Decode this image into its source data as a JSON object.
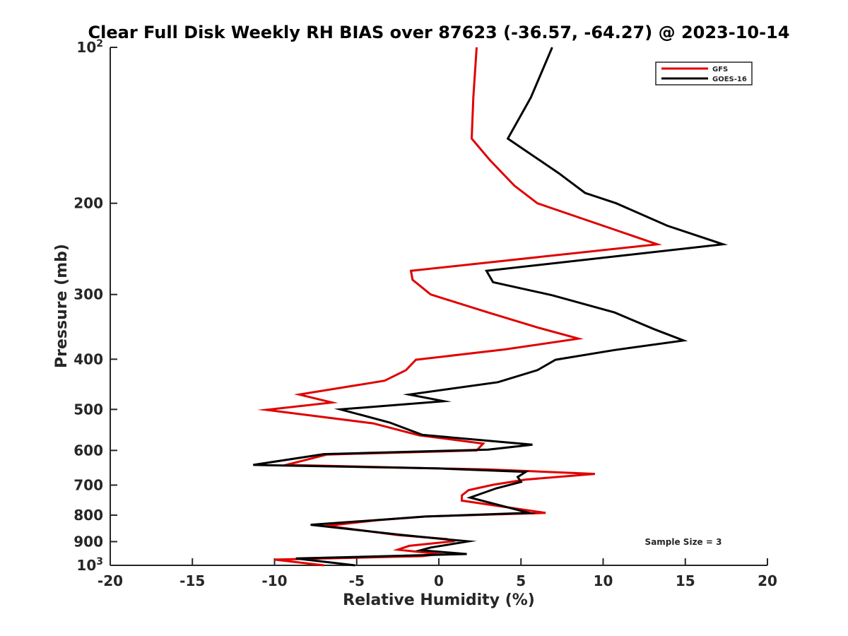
{
  "chart_data": {
    "type": "line",
    "title": "Clear Full Disk Weekly RH BIAS over 87623 (-36.57, -64.27) @ 2023-10-14",
    "xlabel": "Relative Humidity (%)",
    "ylabel": "Pressure (mb)",
    "xlim": [
      -20,
      20
    ],
    "ylim": [
      1000,
      100
    ],
    "y_scale": "log",
    "y_reversed": true,
    "grid": false,
    "legend_position": "top-right",
    "x_ticks": [
      "-20",
      "-15",
      "-10",
      "-5",
      "0",
      "5",
      "10",
      "15",
      "20"
    ],
    "x_tick_values": [
      -20,
      -15,
      -10,
      -5,
      0,
      5,
      10,
      15,
      20
    ],
    "y_ticks": [
      {
        "value": 100,
        "base": "10",
        "exp": "2"
      },
      {
        "value": 200,
        "label": "200"
      },
      {
        "value": 300,
        "label": "300"
      },
      {
        "value": 400,
        "label": "400"
      },
      {
        "value": 500,
        "label": "500"
      },
      {
        "value": 600,
        "label": "600"
      },
      {
        "value": 700,
        "label": "700"
      },
      {
        "value": 800,
        "label": "800"
      },
      {
        "value": 900,
        "label": "900"
      },
      {
        "value": 1000,
        "base": "10",
        "exp": "3"
      }
    ],
    "annotation": "Sample Size = 3",
    "series": [
      {
        "name": "GFS",
        "color": "#e00000",
        "points": [
          [
            2.3,
            100
          ],
          [
            2.1,
            125
          ],
          [
            2.0,
            150
          ],
          [
            3.1,
            165
          ],
          [
            4.6,
            185
          ],
          [
            6.0,
            200
          ],
          [
            13.3,
            240
          ],
          [
            -1.7,
            270
          ],
          [
            -1.6,
            281
          ],
          [
            -0.5,
            300
          ],
          [
            3.0,
            325
          ],
          [
            6.1,
            348
          ],
          [
            8.5,
            365
          ],
          [
            4.0,
            383
          ],
          [
            -1.4,
            401
          ],
          [
            -2.0,
            420
          ],
          [
            -3.3,
            440
          ],
          [
            -8.5,
            468
          ],
          [
            -6.5,
            485
          ],
          [
            -10.5,
            501
          ],
          [
            -4.0,
            532
          ],
          [
            -1.2,
            561
          ],
          [
            2.7,
            582
          ],
          [
            2.3,
            600
          ],
          [
            -6.8,
            611
          ],
          [
            -9.3,
            640
          ],
          [
            0.0,
            650
          ],
          [
            3.0,
            653
          ],
          [
            9.5,
            666
          ],
          [
            5.3,
            683
          ],
          [
            3.3,
            699
          ],
          [
            1.8,
            716
          ],
          [
            1.4,
            733
          ],
          [
            1.4,
            750
          ],
          [
            6.5,
            792
          ],
          [
            -0.8,
            805
          ],
          [
            -3.7,
            818
          ],
          [
            -6.8,
            839
          ],
          [
            -2.5,
            874
          ],
          [
            0.5,
            890
          ],
          [
            0.8,
            899
          ],
          [
            -1.8,
            917
          ],
          [
            -2.5,
            933
          ],
          [
            0.0,
            951
          ],
          [
            -1.0,
            960
          ],
          [
            -10.0,
            975
          ],
          [
            -7.0,
            1000
          ]
        ]
      },
      {
        "name": "GOES-16",
        "color": "#000000",
        "points": [
          [
            6.9,
            100
          ],
          [
            5.6,
            125
          ],
          [
            4.2,
            150
          ],
          [
            7.3,
            175
          ],
          [
            8.9,
            191
          ],
          [
            10.8,
            200
          ],
          [
            13.9,
            221
          ],
          [
            17.3,
            240
          ],
          [
            2.9,
            270
          ],
          [
            3.3,
            284
          ],
          [
            6.9,
            301
          ],
          [
            10.7,
            325
          ],
          [
            13.1,
            350
          ],
          [
            14.9,
            368
          ],
          [
            10.7,
            384
          ],
          [
            7.1,
            401
          ],
          [
            6.0,
            420
          ],
          [
            3.6,
            443
          ],
          [
            -1.8,
            468
          ],
          [
            0.3,
            482
          ],
          [
            -6.0,
            500
          ],
          [
            -3.0,
            530
          ],
          [
            -1.0,
            560
          ],
          [
            5.7,
            585
          ],
          [
            3.0,
            598
          ],
          [
            -7.0,
            610
          ],
          [
            -11.3,
            640
          ],
          [
            0.0,
            650
          ],
          [
            5.3,
            660
          ],
          [
            4.8,
            675
          ],
          [
            5.0,
            690
          ],
          [
            3.5,
            710
          ],
          [
            1.9,
            740
          ],
          [
            5.5,
            792
          ],
          [
            -0.8,
            805
          ],
          [
            -3.8,
            818
          ],
          [
            -7.8,
            835
          ],
          [
            -2.5,
            872
          ],
          [
            0.3,
            890
          ],
          [
            1.8,
            899
          ],
          [
            -0.5,
            924
          ],
          [
            -1.1,
            935
          ],
          [
            1.7,
            951
          ],
          [
            -8.7,
            970
          ],
          [
            -5.1,
            1000
          ]
        ]
      }
    ]
  }
}
